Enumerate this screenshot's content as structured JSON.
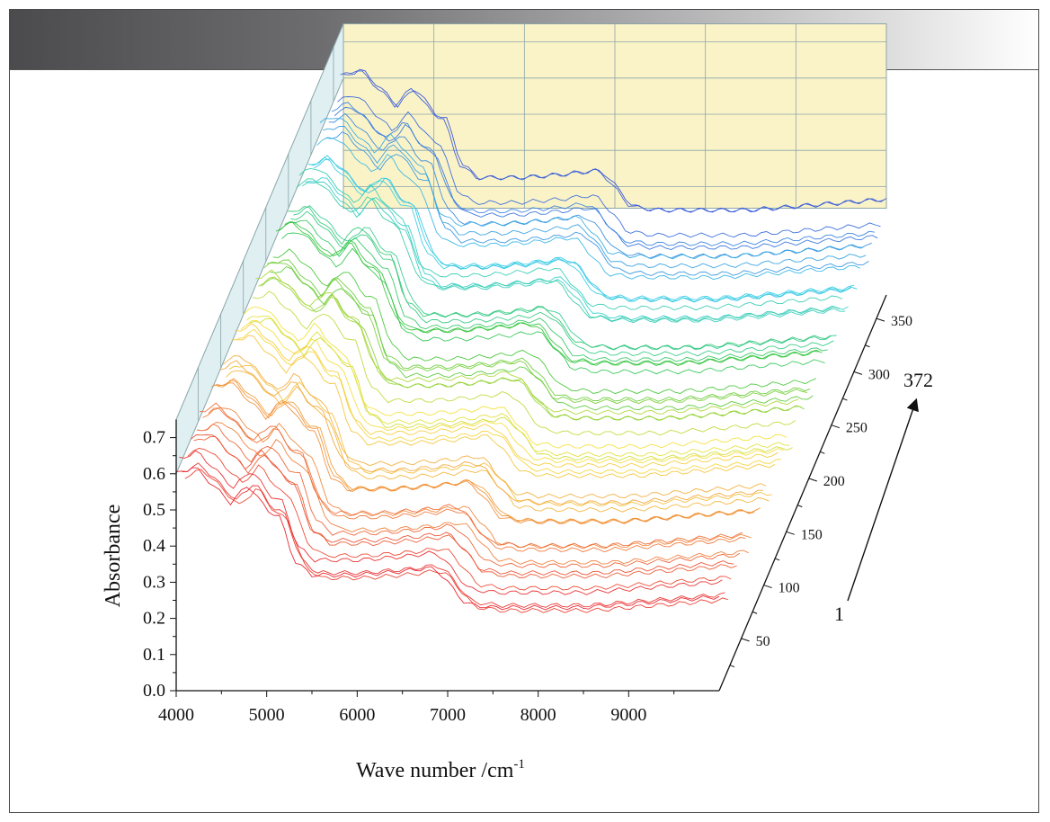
{
  "chart_data": {
    "type": "line",
    "subtype": "3d-waterfall",
    "xlabel": "Wave number /cm",
    "xlabel_superscript": "-1",
    "ylabel": "Absorbance",
    "x_ticks": [
      4000,
      5000,
      6000,
      7000,
      8000,
      9000
    ],
    "x_range": [
      4000,
      10000
    ],
    "y_ticks": [
      "0.0",
      "0.1",
      "0.2",
      "0.3",
      "0.4",
      "0.5",
      "0.6",
      "0.7"
    ],
    "y_range": [
      0,
      0.75
    ],
    "z_ticks": [
      50,
      100,
      150,
      200,
      250,
      300,
      350
    ],
    "z_range": [
      1,
      372
    ],
    "spectrum_count": 372,
    "arrow_start_label": "1",
    "arrow_end_label": "372",
    "color_order": [
      "red",
      "orange",
      "yellow",
      "green",
      "cyan",
      "blue"
    ],
    "typical_spectrum": {
      "x": [
        4000,
        4200,
        4400,
        4600,
        4800,
        5000,
        5150,
        5300,
        5500,
        6000,
        6500,
        6800,
        6900,
        7000,
        7200,
        7500,
        8000,
        8500,
        9000,
        9500,
        10000
      ],
      "y": [
        0.58,
        0.6,
        0.55,
        0.5,
        0.55,
        0.48,
        0.46,
        0.34,
        0.3,
        0.3,
        0.31,
        0.32,
        0.31,
        0.28,
        0.22,
        0.21,
        0.21,
        0.21,
        0.22,
        0.23,
        0.24
      ]
    },
    "wall_colors": {
      "back_wall": "#fbf3c8",
      "side_wall": "#dfeff2",
      "grid": "#8aa5a8"
    },
    "grid": true
  }
}
